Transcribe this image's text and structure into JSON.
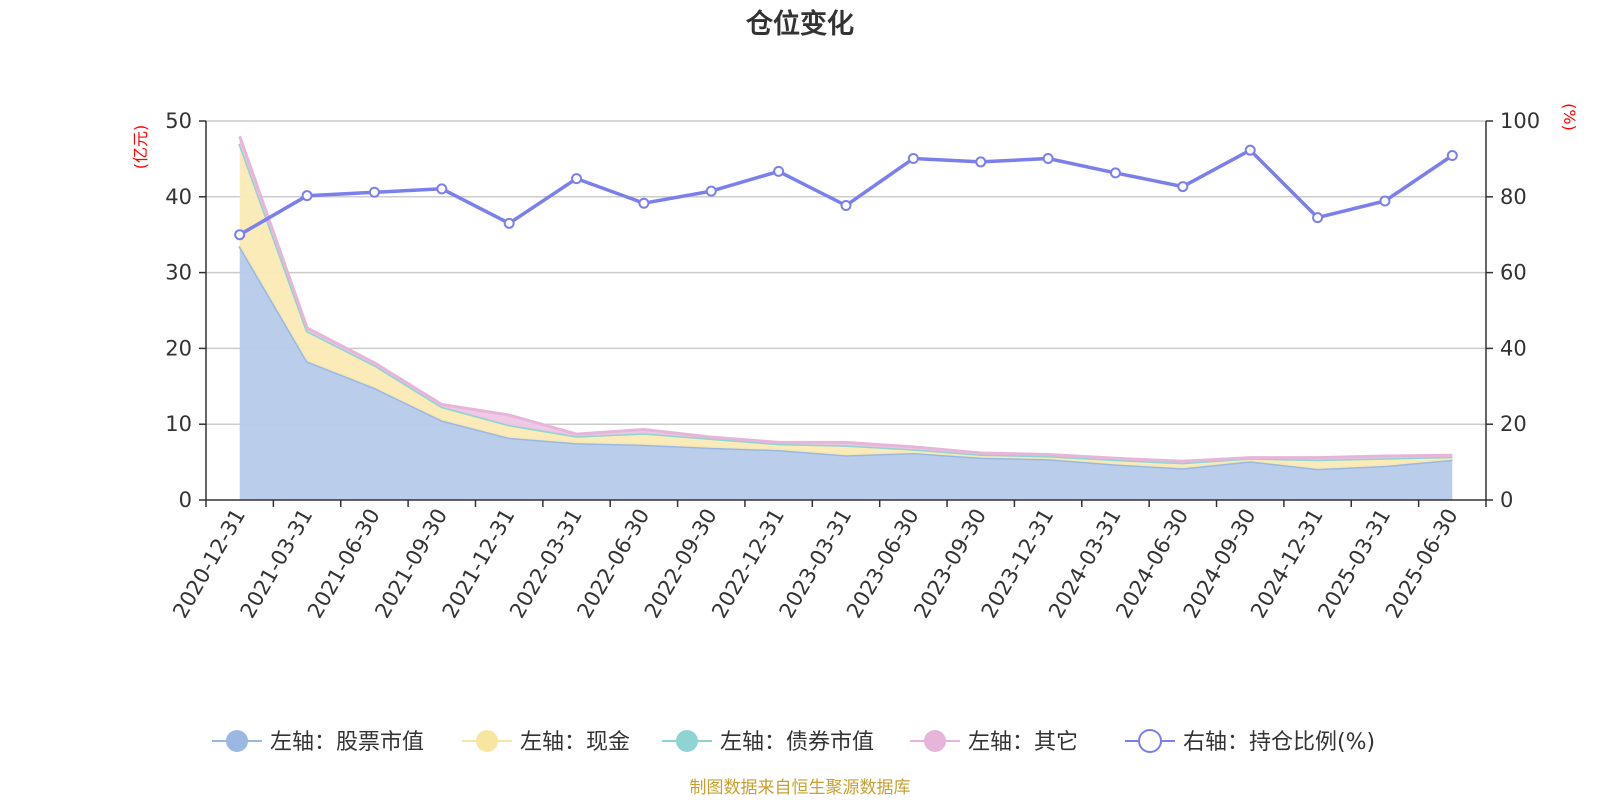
{
  "title": "仓位变化",
  "source_note": "制图数据来自恒生聚源数据库",
  "chart_data": {
    "type": "area",
    "title": "仓位变化",
    "left_axis": {
      "unit": "(亿元)",
      "ylim": [
        0,
        50
      ],
      "ticks": [
        0,
        10,
        20,
        30,
        40,
        50
      ]
    },
    "right_axis": {
      "unit": "(%)",
      "ylim": [
        0,
        100
      ],
      "ticks": [
        0,
        20,
        40,
        60,
        80,
        100
      ]
    },
    "categories": [
      "2020-12-31",
      "2021-03-31",
      "2021-06-30",
      "2021-09-30",
      "2021-12-31",
      "2022-03-31",
      "2022-06-30",
      "2022-09-30",
      "2022-12-31",
      "2023-03-31",
      "2023-06-30",
      "2023-09-30",
      "2023-12-31",
      "2024-03-31",
      "2024-06-30",
      "2024-09-30",
      "2024-12-31",
      "2025-03-31",
      "2025-06-30"
    ],
    "grid": true,
    "legend_position": "bottom",
    "series": [
      {
        "name": "左轴：股票市值",
        "axis": "left",
        "kind": "area",
        "color": "#9bb8e3",
        "fill": "#b6cbea",
        "values": [
          33.5,
          18.3,
          14.8,
          10.5,
          8.2,
          7.5,
          7.3,
          6.9,
          6.6,
          5.9,
          6.2,
          5.6,
          5.4,
          4.7,
          4.2,
          5.1,
          4.1,
          4.5,
          5.3
        ]
      },
      {
        "name": "左轴：现金",
        "axis": "left",
        "kind": "area",
        "color": "#f7e6a1",
        "fill": "#faeab4",
        "values": [
          13.5,
          4.0,
          3.0,
          1.8,
          1.7,
          0.9,
          1.5,
          1.2,
          0.8,
          1.3,
          0.5,
          0.4,
          0.4,
          0.6,
          0.7,
          0.4,
          1.2,
          1.0,
          0.4
        ]
      },
      {
        "name": "左轴：债券市值",
        "axis": "left",
        "kind": "area",
        "color": "#8fd3d3",
        "fill": "#8fd3d3",
        "values": [
          0,
          0,
          0,
          0,
          0,
          0,
          0,
          0,
          0,
          0,
          0,
          0,
          0,
          0,
          0,
          0,
          0,
          0,
          0
        ]
      },
      {
        "name": "左轴：其它",
        "axis": "left",
        "kind": "area",
        "color": "#e7b5da",
        "fill": "#eec6e4",
        "values": [
          1.0,
          0.4,
          0.3,
          0.3,
          1.3,
          0.3,
          0.5,
          0.2,
          0.2,
          0.4,
          0.3,
          0.2,
          0.2,
          0.2,
          0.2,
          0.1,
          0.3,
          0.3,
          0.2
        ]
      },
      {
        "name": "右轴：持仓比例(%)",
        "axis": "right",
        "kind": "line",
        "color": "#7b7fec",
        "values": [
          70.0,
          80.3,
          81.2,
          82.1,
          73.0,
          84.8,
          78.3,
          81.5,
          86.7,
          77.7,
          90.1,
          89.2,
          90.1,
          86.3,
          82.7,
          92.3,
          74.5,
          78.9,
          90.9
        ]
      }
    ]
  }
}
